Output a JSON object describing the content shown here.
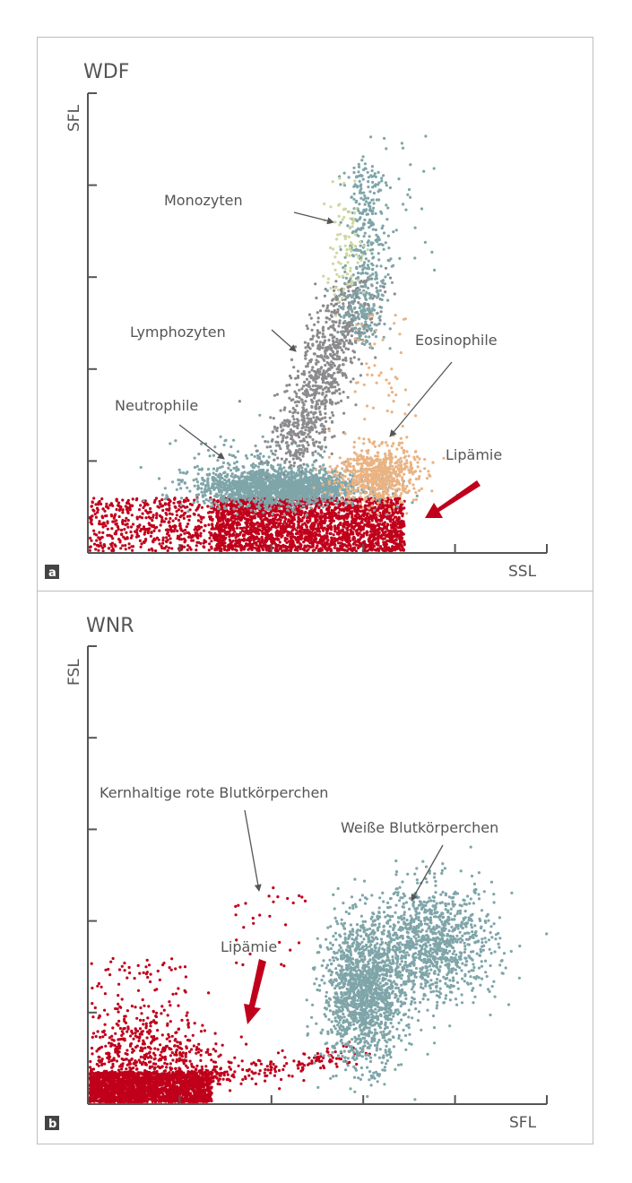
{
  "chart_data": [
    {
      "type": "scatter",
      "title": "WDF",
      "xlabel": "SSL",
      "ylabel": "SFL",
      "panel_label": "a",
      "xlim": [
        0,
        5
      ],
      "ylim": [
        0,
        5
      ],
      "xticks": [
        0,
        1,
        2,
        3,
        4,
        5
      ],
      "yticks": [
        0,
        1,
        2,
        3,
        4,
        5
      ],
      "tick_labels_shown": false,
      "grid": false,
      "colors": {
        "neutrophile": "#7fa5a9",
        "lymphozyten": "#8b8b8d",
        "monozyten": "#7fa5a9",
        "monozyten_light": "#cdd9a0",
        "eosinophile": "#e9b383",
        "lipaemie": "#c0001b"
      },
      "clusters": [
        {
          "population": "lipaemie",
          "color": "#c0001b",
          "kind": "uniform",
          "x": [
            0.0,
            1.5
          ],
          "y": [
            0.0,
            0.6
          ],
          "n": 600
        },
        {
          "population": "lipaemie",
          "color": "#c0001b",
          "kind": "uniform",
          "x": [
            1.4,
            3.45
          ],
          "y": [
            0.0,
            0.6
          ],
          "n": 2600
        },
        {
          "population": "neutrophile",
          "color": "#7fa5a9",
          "kind": "gauss",
          "center": [
            2.1,
            0.72
          ],
          "spread": [
            0.45,
            0.1
          ],
          "n": 1800
        },
        {
          "population": "neutrophile",
          "color": "#7fa5a9",
          "kind": "gauss",
          "center": [
            1.8,
            0.95
          ],
          "spread": [
            0.4,
            0.2
          ],
          "n": 120
        },
        {
          "population": "lymphozyten",
          "color": "#8b8b8d",
          "kind": "segment",
          "from": [
            2.2,
            1.0
          ],
          "to": [
            2.95,
            2.95
          ],
          "spread": 0.16,
          "n": 900
        },
        {
          "population": "monozyten",
          "color": "#7fa5a9",
          "kind": "segment",
          "from": [
            3.0,
            2.3
          ],
          "to": [
            3.05,
            4.2
          ],
          "spread": 0.12,
          "n": 420
        },
        {
          "population": "monozyten",
          "color": "#7fa5a9",
          "kind": "uniform",
          "x": [
            2.9,
            3.8
          ],
          "y": [
            2.5,
            4.7
          ],
          "n": 40
        },
        {
          "population": "monozyten",
          "color": "#cdd9a0",
          "kind": "gauss",
          "center": [
            2.8,
            3.3
          ],
          "spread": [
            0.12,
            0.3
          ],
          "n": 90
        },
        {
          "population": "eosinophile",
          "color": "#e9b383",
          "kind": "gauss",
          "center": [
            3.15,
            0.85
          ],
          "spread": [
            0.22,
            0.15
          ],
          "n": 650
        },
        {
          "population": "eosinophile",
          "color": "#e9b383",
          "kind": "uniform",
          "x": [
            2.9,
            3.5
          ],
          "y": [
            1.0,
            2.6
          ],
          "n": 60
        }
      ],
      "annotations": [
        "Monozyten",
        "Lymphozyten",
        "Eosinophile",
        "Neutrophile",
        "Lipämie"
      ]
    },
    {
      "type": "scatter",
      "title": "WNR",
      "xlabel": "SFL",
      "ylabel": "FSL",
      "panel_label": "b",
      "xlim": [
        0,
        5
      ],
      "ylim": [
        0,
        5
      ],
      "xticks": [
        0,
        1,
        2,
        3,
        4,
        5
      ],
      "yticks": [
        0,
        1,
        2,
        3,
        4,
        5
      ],
      "tick_labels_shown": false,
      "grid": false,
      "colors": {
        "weisse_blutkoerperchen": "#7fa5a9",
        "kernhaltige_rote_blutkoerperchen": "#c0001b",
        "lipaemie": "#c0001b"
      },
      "clusters": [
        {
          "population": "lipaemie",
          "color": "#c0001b",
          "kind": "uniform",
          "x": [
            0.0,
            1.35
          ],
          "y": [
            0.0,
            0.35
          ],
          "n": 2200
        },
        {
          "population": "lipaemie",
          "color": "#c0001b",
          "kind": "gauss",
          "center": [
            0.6,
            0.45
          ],
          "spread": [
            0.45,
            0.28
          ],
          "n": 700
        },
        {
          "population": "lipaemie",
          "color": "#c0001b",
          "kind": "uniform",
          "x": [
            0.0,
            1.1
          ],
          "y": [
            0.0,
            1.6
          ],
          "n": 160
        },
        {
          "population": "lipaemie",
          "color": "#c0001b",
          "kind": "segment",
          "from": [
            1.3,
            0.3
          ],
          "to": [
            3.0,
            0.55
          ],
          "spread": 0.1,
          "n": 160
        },
        {
          "population": "kernhaltige_rote_blutkoerperchen",
          "color": "#c0001b",
          "kind": "uniform",
          "x": [
            1.6,
            2.4
          ],
          "y": [
            1.5,
            2.4
          ],
          "n": 28
        },
        {
          "population": "weisse_blutkoerperchen",
          "color": "#7fa5a9",
          "kind": "gauss",
          "center": [
            3.0,
            1.2
          ],
          "spread": [
            0.22,
            0.38
          ],
          "n": 1500
        },
        {
          "population": "weisse_blutkoerperchen",
          "color": "#7fa5a9",
          "kind": "gauss",
          "center": [
            3.75,
            1.75
          ],
          "spread": [
            0.35,
            0.32
          ],
          "n": 1100
        }
      ],
      "annotations": [
        "Kernhaltige rote Blutkörperchen",
        "Weiße Blutkörperchen",
        "Lipämie"
      ]
    }
  ]
}
